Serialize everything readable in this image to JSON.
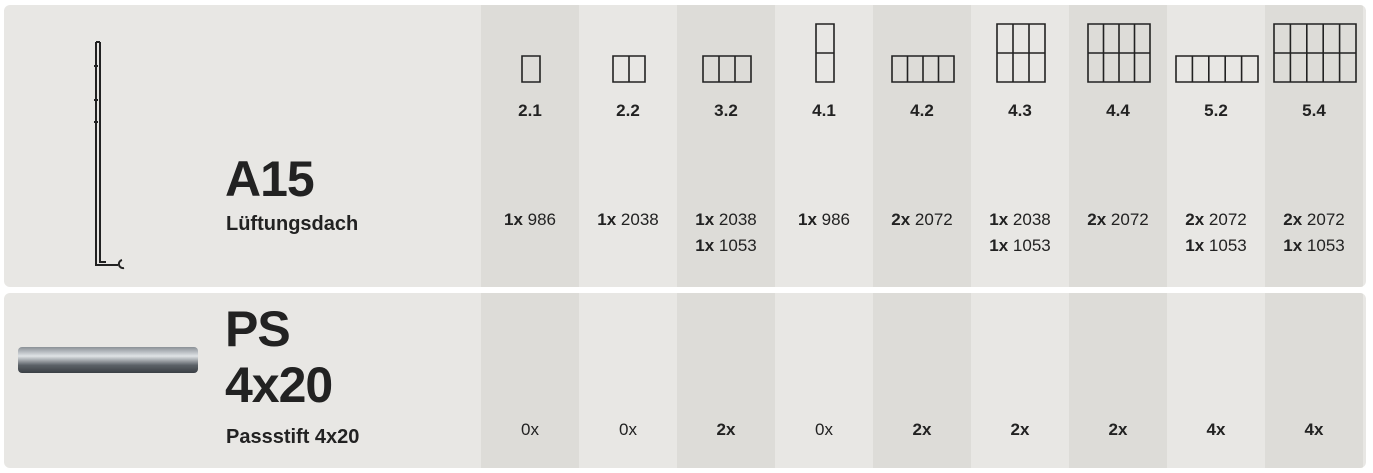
{
  "columns": [
    "2.1",
    "2.2",
    "3.2",
    "4.1",
    "4.2",
    "4.3",
    "4.4",
    "5.2",
    "5.4"
  ],
  "rows": [
    {
      "code": [
        "A15"
      ],
      "name": "Lüftungsdach",
      "cells": [
        [
          {
            "qty": "1x",
            "length": "986"
          }
        ],
        [
          {
            "qty": "1x",
            "length": "2038"
          }
        ],
        [
          {
            "qty": "1x",
            "length": "2038"
          },
          {
            "qty": "1x",
            "length": "1053"
          }
        ],
        [
          {
            "qty": "1x",
            "length": "986"
          }
        ],
        [
          {
            "qty": "2x",
            "length": "2072"
          }
        ],
        [
          {
            "qty": "1x",
            "length": "2038"
          },
          {
            "qty": "1x",
            "length": "1053"
          }
        ],
        [
          {
            "qty": "2x",
            "length": "2072"
          }
        ],
        [
          {
            "qty": "2x",
            "length": "2072"
          },
          {
            "qty": "1x",
            "length": "1053"
          }
        ],
        [
          {
            "qty": "2x",
            "length": "2072"
          },
          {
            "qty": "1x",
            "length": "1053"
          }
        ]
      ]
    },
    {
      "code": [
        "PS",
        "4x20"
      ],
      "name": "Passstift 4x20",
      "cells": [
        [
          {
            "qty": "0x",
            "bold": false
          }
        ],
        [
          {
            "qty": "0x",
            "bold": false
          }
        ],
        [
          {
            "qty": "2x",
            "bold": true
          }
        ],
        [
          {
            "qty": "0x",
            "bold": false
          }
        ],
        [
          {
            "qty": "2x",
            "bold": true
          }
        ],
        [
          {
            "qty": "2x",
            "bold": true
          }
        ],
        [
          {
            "qty": "2x",
            "bold": true
          }
        ],
        [
          {
            "qty": "4x",
            "bold": true
          }
        ],
        [
          {
            "qty": "4x",
            "bold": true
          }
        ]
      ]
    }
  ]
}
